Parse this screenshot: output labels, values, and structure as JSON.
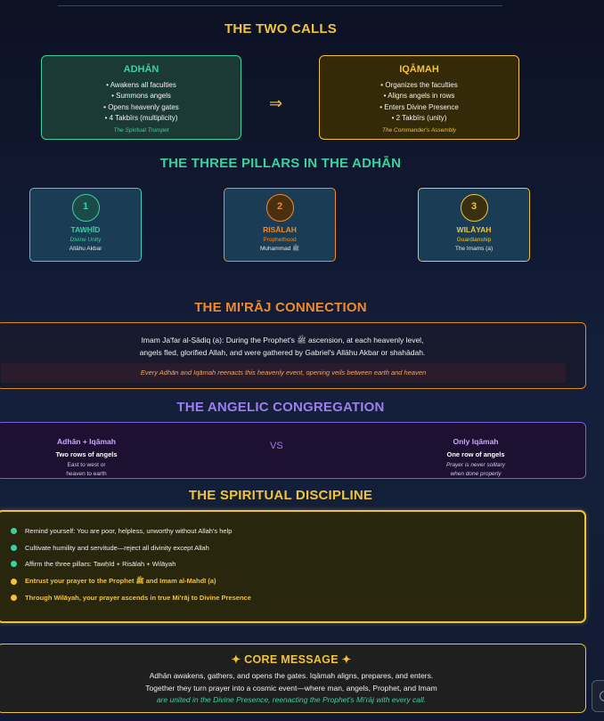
{
  "two_calls": {
    "heading": "THE TWO CALLS",
    "adhan": {
      "title": "ADHĀN",
      "items": [
        "• Awakens all faculties",
        "• Summons angels",
        "• Opens heavenly gates",
        "• 4 Takbīrs (multiplicity)"
      ],
      "subtitle": "The Spiritual Trumpet"
    },
    "arrow": "⇒",
    "iqamah": {
      "title": "IQĀMAH",
      "items": [
        "• Organizes the faculties",
        "• Aligns angels in rows",
        "• Enters Divine Presence",
        "• 2 Takbīrs (unity)"
      ],
      "subtitle": "The Commander's Assembly"
    }
  },
  "pillars": {
    "heading": "THE THREE PILLARS IN THE ADHĀN",
    "items": [
      {
        "num": "1",
        "title": "TAWḤĪD",
        "subtitle": "Divine Unity",
        "arabic": "Allāhu Akbar"
      },
      {
        "num": "2",
        "title": "RISĀLAH",
        "subtitle": "Prophethood",
        "arabic": "Muhammad ﷺ"
      },
      {
        "num": "3",
        "title": "WILĀYAH",
        "subtitle": "Guardianship",
        "arabic": "The Imams (a)"
      }
    ]
  },
  "miraj": {
    "heading": "THE MI'RĀJ CONNECTION",
    "line1": "Imam Ja'far al-Ṣādiq (a): During the Prophet's ﷺ ascension, at each heavenly level,",
    "line2": "angels fled, glorified Allah, and were gathered by Gabriel's Allāhu Akbar or shahādah.",
    "note": "Every Adhān and Iqāmah reenacts this heavenly event, opening veils between earth and heaven"
  },
  "congregation": {
    "heading": "THE ANGELIC CONGREGATION",
    "left": {
      "title": "Adhān + Iqāmah",
      "line": "Two rows of angels",
      "note1": "East to west or",
      "note2": "heaven to earth"
    },
    "vs": "VS",
    "right": {
      "title": "Only Iqāmah",
      "line": "One row of angels",
      "note1": "Prayer is never solitary",
      "note2": "when done properly"
    }
  },
  "discipline": {
    "heading": "THE SPIRITUAL DISCIPLINE",
    "items": [
      "Remind yourself: You are poor, helpless, unworthy without Allah's help",
      "Cultivate humility and servitude—reject all divinity except Allah",
      "Affirm the three pillars: Tawḥīd + Risālah + Wilāyah",
      "Entrust your prayer to the Prophet ﷺ and Imam al-Mahdī (a)",
      "Through Wilāyah, your prayer ascends in true Mi'rāj to Divine Presence"
    ]
  },
  "core": {
    "heading": "✦ CORE MESSAGE ✦",
    "line1": "Adhān awakens, gathers, and opens the gates. Iqāmah aligns, prepares, and enters.",
    "line2": "Together they turn prayer into a cosmic event—where man, angels, Prophet, and Imam",
    "line3": "are united in the Divine Presence, reenacting the Prophet's Mi'rāj with every call."
  },
  "colors": {
    "gold": "#f0c43a",
    "teal": "#3ecf9e",
    "orange": "#f08a2a",
    "purple": "#9c7ef0"
  }
}
